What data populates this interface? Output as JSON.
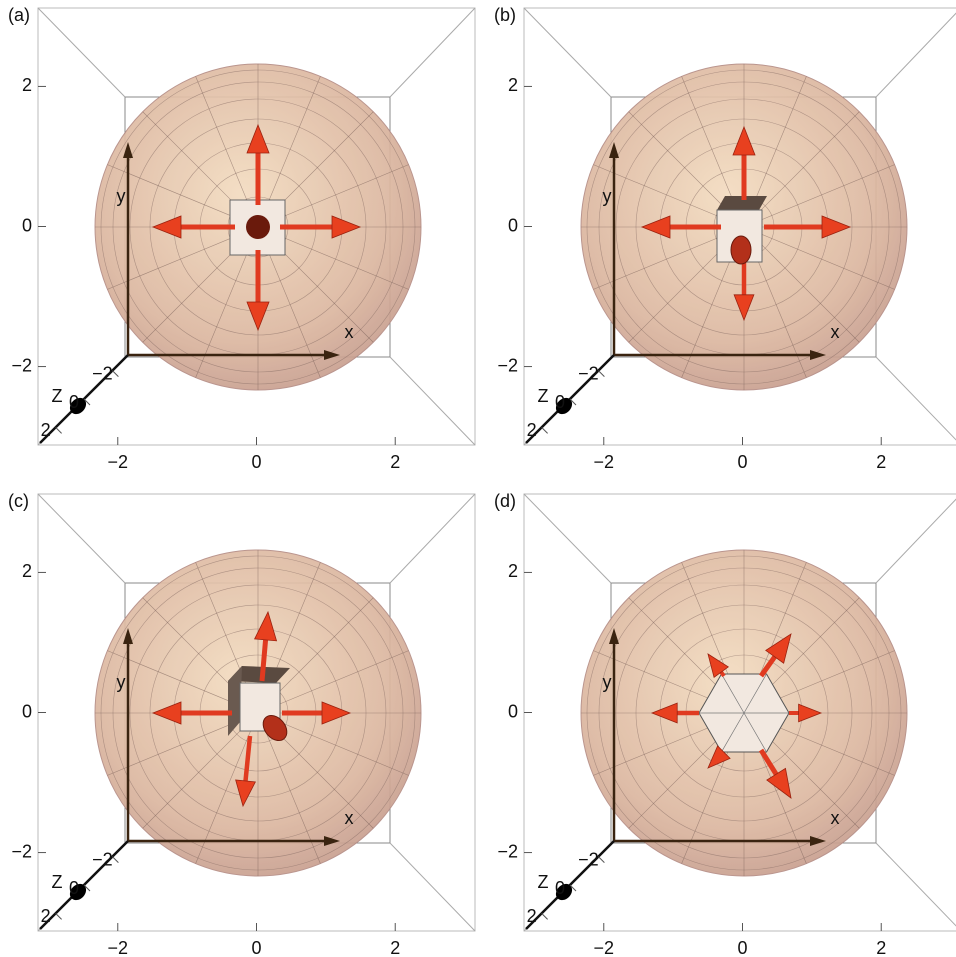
{
  "chart_data": [
    {
      "type": "vector-field-3d",
      "panel_label": "(a)",
      "xlabel": "x",
      "ylabel": "y",
      "zlabel": "Z",
      "xlim": [
        -3.15,
        3.15
      ],
      "ylim": [
        -3.12,
        3.12
      ],
      "zlim": [
        -3.1,
        3.1
      ],
      "xticks": [
        {
          "value": -2,
          "label": "−2"
        },
        0,
        2
      ],
      "yticks": [
        {
          "value": -2,
          "label": "−2"
        },
        0,
        2
      ],
      "zticks": [
        {
          "value": -2,
          "label": "−2"
        },
        0,
        2
      ]
    },
    {
      "type": "vector-field-3d",
      "panel_label": "(b)",
      "xlabel": "x",
      "ylabel": "y",
      "zlabel": "Z",
      "xlim": [
        -3.15,
        3.15
      ],
      "ylim": [
        -3.12,
        3.12
      ],
      "zlim": [
        -3.1,
        3.1
      ],
      "xticks": [
        {
          "value": -2,
          "label": "−2"
        },
        0,
        2
      ],
      "yticks": [
        {
          "value": -2,
          "label": "−2"
        },
        0,
        2
      ],
      "zticks": [
        {
          "value": -2,
          "label": "−2"
        },
        0,
        2
      ]
    },
    {
      "type": "vector-field-3d",
      "panel_label": "(c)",
      "xlabel": "x",
      "ylabel": "y",
      "zlabel": "Z",
      "xlim": [
        -3.15,
        3.15
      ],
      "ylim": [
        -3.12,
        3.12
      ],
      "zlim": [
        -3.1,
        3.1
      ],
      "xticks": [
        {
          "value": -2,
          "label": "−2"
        },
        0,
        2
      ],
      "yticks": [
        {
          "value": -2,
          "label": "−2"
        },
        0,
        2
      ],
      "zticks": [
        {
          "value": -2,
          "label": "−2"
        },
        0,
        2
      ]
    },
    {
      "type": "vector-field-3d",
      "panel_label": "(d)",
      "xlabel": "x",
      "ylabel": "y",
      "zlabel": "Z",
      "xlim": [
        -3.15,
        3.15
      ],
      "ylim": [
        -3.12,
        3.12
      ],
      "zlim": [
        -3.1,
        3.1
      ],
      "xticks": [
        {
          "value": -2,
          "label": "−2"
        },
        0,
        2
      ],
      "yticks": [
        {
          "value": -2,
          "label": "−2"
        },
        0,
        2
      ],
      "zticks": [
        {
          "value": -2,
          "label": "−2"
        },
        0,
        2
      ]
    }
  ]
}
